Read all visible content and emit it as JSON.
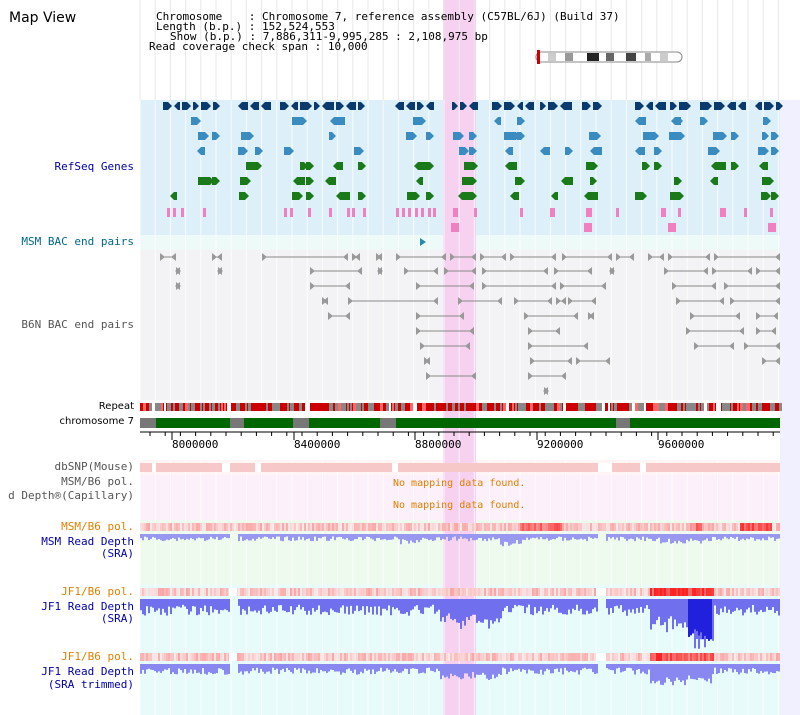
{
  "title": "Map View",
  "info": {
    "chromosome_key": "Chromosome",
    "chromosome_val": "Chromosome 7, reference assembly (C57BL/6J) (Build 37)",
    "length_key": "Length (b.p.)",
    "length_val": "152,524,553",
    "show_key": "Show (b.p.)",
    "show_val": "7,886,311-9,995,285 : 2,108,975 bp",
    "span_key": "Read coverage check span",
    "span_val": "10,000"
  },
  "tracks": {
    "refseq": "RefSeq Genes",
    "msm_bac": "MSM BAC end pairs",
    "b6n_bac": "B6N BAC end pairs",
    "repeat": "Repeat",
    "chromosome": "chromosome 7",
    "dbsnp": "dbSNP(Mouse)",
    "msm_pol1": "MSM/B6 pol.",
    "msm_depth_cap": "d Depth®(Capillary)",
    "msm_pol2": "MSM/B6 pol.",
    "msm_read_depth": "MSM Read Depth",
    "msm_read_depth_sub": "(SRA)",
    "jf1_pol1": "JF1/B6 pol.",
    "jf1_read_depth": "JF1 Read Depth",
    "jf1_read_depth_sub": "(SRA)",
    "jf1_pol2": "JF1/B6 pol.",
    "jf1_read_depth2": "JF1 Read Depth",
    "jf1_read_depth2_sub": "(SRA trimmed)"
  },
  "no_data_1": "No mapping data found.",
  "no_data_2": "No mapping data found.",
  "axis_ticks": [
    "8000000",
    "8400000",
    "8800000",
    "9200000",
    "9600000"
  ],
  "colors": {
    "refseq_bg": "#ddf0fa",
    "bac_bg": "#eefaf8",
    "b6n_bg": "#f2f2f4",
    "highlight": "#f6d2f0",
    "dbsnp": "#f7c8c8",
    "depth": "#8080ee",
    "chrom": "#006600",
    "repeat": "#cc0000"
  }
}
